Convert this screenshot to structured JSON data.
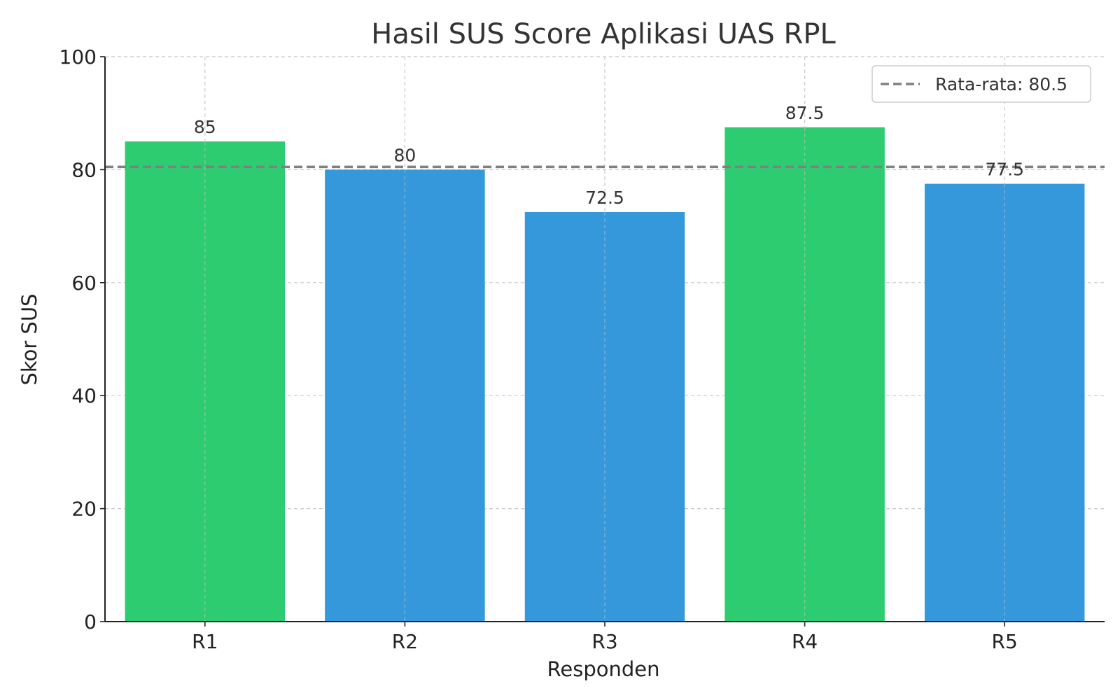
{
  "chart_data": {
    "type": "bar",
    "title": "Hasil SUS Score Aplikasi UAS RPL",
    "xlabel": "Responden",
    "ylabel": "Skor SUS",
    "categories": [
      "R1",
      "R2",
      "R3",
      "R4",
      "R5"
    ],
    "values": [
      85,
      80,
      72.5,
      87.5,
      77.5
    ],
    "data_labels": [
      "85",
      "80",
      "72.5",
      "87.5",
      "77.5"
    ],
    "bar_colors": [
      "#2ecc71",
      "#3498db",
      "#3498db",
      "#2ecc71",
      "#3498db"
    ],
    "ylim": [
      0,
      100
    ],
    "yticks": [
      0,
      20,
      40,
      60,
      80,
      100
    ],
    "grid": true,
    "reference_line": {
      "value": 80.5,
      "label": "Rata-rata: 80.5",
      "color": "#808080",
      "style": "dashed"
    },
    "legend": {
      "position": "top-right",
      "entries": [
        "Rata-rata: 80.5"
      ]
    }
  }
}
